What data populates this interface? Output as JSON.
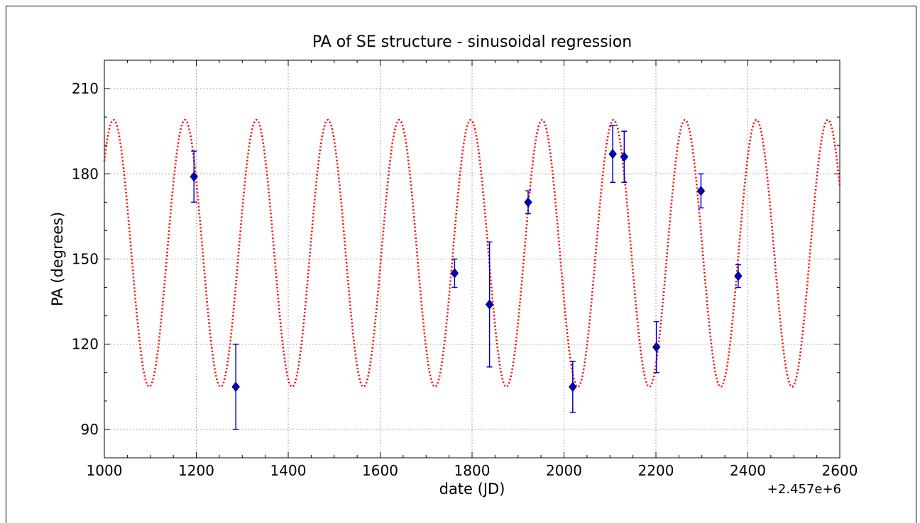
{
  "chart_data": {
    "type": "scatter",
    "title": "PA of SE structure - sinusoidal regression",
    "xlabel": "date (JD)",
    "ylabel": "PA (degrees)",
    "x_offset_label": "+2.457e+6",
    "xlim": [
      1000,
      2600
    ],
    "ylim": [
      80,
      220
    ],
    "xticks": [
      1000,
      1200,
      1400,
      1600,
      1800,
      2000,
      2200,
      2400,
      2600
    ],
    "yticks": [
      90,
      120,
      150,
      180,
      210
    ],
    "grid": true,
    "series": [
      {
        "kind": "errorbar",
        "color": "#0000cc",
        "marker": "diamond",
        "points": [
          {
            "x": 1195,
            "y": 179,
            "yerr_low": 9,
            "yerr_high": 9
          },
          {
            "x": 1286,
            "y": 105,
            "yerr_low": 15,
            "yerr_high": 15
          },
          {
            "x": 1762,
            "y": 145,
            "yerr_low": 5,
            "yerr_high": 5
          },
          {
            "x": 1838,
            "y": 134,
            "yerr_low": 22,
            "yerr_high": 22
          },
          {
            "x": 1922,
            "y": 170,
            "yerr_low": 4,
            "yerr_high": 4
          },
          {
            "x": 2019,
            "y": 105,
            "yerr_low": 9,
            "yerr_high": 9
          },
          {
            "x": 2106,
            "y": 187,
            "yerr_low": 10,
            "yerr_high": 10
          },
          {
            "x": 2131,
            "y": 186,
            "yerr_low": 9,
            "yerr_high": 9
          },
          {
            "x": 2201,
            "y": 119,
            "yerr_low": 9,
            "yerr_high": 9
          },
          {
            "x": 2298,
            "y": 174,
            "yerr_low": 6,
            "yerr_high": 6
          },
          {
            "x": 2379,
            "y": 144,
            "yerr_low": 4,
            "yerr_high": 4
          }
        ]
      },
      {
        "kind": "line",
        "style": "dotted",
        "color": "#ff0000",
        "model": "sinusoid",
        "offset": 152,
        "amplitude": 47,
        "period": 155.4,
        "peak_at": 1020
      }
    ]
  }
}
